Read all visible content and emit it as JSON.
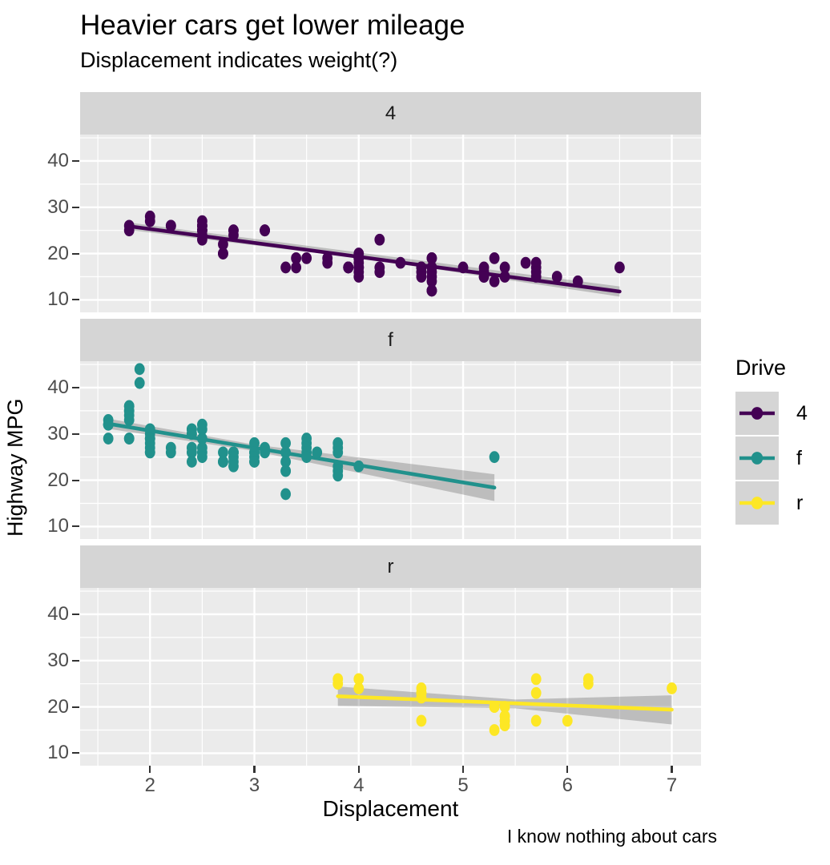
{
  "chart_data": {
    "type": "scatter",
    "title": "Heavier cars get lower mileage",
    "subtitle": "Displacement indicates weight(?)",
    "caption": "I know nothing about cars",
    "xlabel": "Displacement",
    "ylabel": "Highway MPG",
    "legend_title": "Drive",
    "legend_position": "right",
    "grid": true,
    "x_range": [
      1.33,
      7.28
    ],
    "y_range": [
      7.3,
      45.7
    ],
    "x_ticks": [
      2,
      3,
      4,
      5,
      6,
      7
    ],
    "y_ticks": [
      10,
      20,
      30,
      40
    ],
    "x_minor": [
      1.5,
      2.5,
      3.5,
      4.5,
      5.5,
      6.5
    ],
    "y_minor": [
      15,
      25,
      35,
      45
    ],
    "panel_bg": "#ebebeb",
    "strip_bg": "#d5d5d5",
    "grid_color": "#ffffff",
    "ci_color": "rgba(96,96,96,0.33)",
    "facets": [
      {
        "label": "4",
        "color": "#440154",
        "trend": [
          [
            1.8,
            25.9
          ],
          [
            6.5,
            11.8
          ]
        ],
        "ci": [
          [
            1.8,
            26.7,
            25.1
          ],
          [
            4.15,
            19.8,
            18.6
          ],
          [
            6.5,
            12.9,
            10.7
          ]
        ],
        "points": [
          [
            1.8,
            26
          ],
          [
            1.8,
            25
          ],
          [
            2.0,
            28
          ],
          [
            2.0,
            27
          ],
          [
            2.2,
            26
          ],
          [
            2.2,
            26
          ],
          [
            2.5,
            25
          ],
          [
            2.5,
            25
          ],
          [
            2.5,
            26
          ],
          [
            2.5,
            26
          ],
          [
            2.5,
            27
          ],
          [
            2.5,
            25
          ],
          [
            2.5,
            26
          ],
          [
            2.5,
            24
          ],
          [
            2.5,
            23
          ],
          [
            2.7,
            20
          ],
          [
            2.7,
            20
          ],
          [
            2.7,
            22
          ],
          [
            2.8,
            25
          ],
          [
            2.8,
            25
          ],
          [
            2.8,
            24
          ],
          [
            3.1,
            25
          ],
          [
            3.1,
            25
          ],
          [
            3.1,
            25
          ],
          [
            3.3,
            17
          ],
          [
            3.4,
            19
          ],
          [
            3.4,
            17
          ],
          [
            3.5,
            19
          ],
          [
            3.7,
            19
          ],
          [
            3.7,
            18
          ],
          [
            3.9,
            17
          ],
          [
            3.9,
            17
          ],
          [
            3.9,
            17
          ],
          [
            4.0,
            20
          ],
          [
            4.0,
            19
          ],
          [
            4.0,
            19
          ],
          [
            4.0,
            18
          ],
          [
            4.0,
            17
          ],
          [
            4.0,
            17
          ],
          [
            4.0,
            17
          ],
          [
            4.0,
            16
          ],
          [
            4.0,
            15
          ],
          [
            4.2,
            23
          ],
          [
            4.2,
            17
          ],
          [
            4.2,
            16
          ],
          [
            4.4,
            18
          ],
          [
            4.6,
            17
          ],
          [
            4.6,
            17
          ],
          [
            4.6,
            16
          ],
          [
            4.6,
            15
          ],
          [
            4.7,
            19
          ],
          [
            4.7,
            19
          ],
          [
            4.7,
            17
          ],
          [
            4.7,
            17
          ],
          [
            4.7,
            17
          ],
          [
            4.7,
            17
          ],
          [
            4.7,
            16
          ],
          [
            4.7,
            15
          ],
          [
            4.7,
            14
          ],
          [
            4.7,
            12
          ],
          [
            4.7,
            12
          ],
          [
            4.7,
            12
          ],
          [
            5.0,
            17
          ],
          [
            5.2,
            17
          ],
          [
            5.2,
            16
          ],
          [
            5.2,
            15
          ],
          [
            5.2,
            15
          ],
          [
            5.3,
            19
          ],
          [
            5.3,
            14
          ],
          [
            5.4,
            17
          ],
          [
            5.4,
            15
          ],
          [
            5.6,
            18
          ],
          [
            5.7,
            18
          ],
          [
            5.7,
            17
          ],
          [
            5.7,
            16
          ],
          [
            5.7,
            15
          ],
          [
            5.9,
            15
          ],
          [
            6.1,
            14
          ],
          [
            6.5,
            17
          ]
        ]
      },
      {
        "label": "f",
        "color": "#21918c",
        "trend": [
          [
            1.6,
            32.2
          ],
          [
            5.3,
            18.4
          ]
        ],
        "ci": [
          [
            1.6,
            33.3,
            31.1
          ],
          [
            3.0,
            27.7,
            26.3
          ],
          [
            5.3,
            21.3,
            15.5
          ]
        ],
        "points": [
          [
            1.6,
            33
          ],
          [
            1.6,
            32
          ],
          [
            1.6,
            32
          ],
          [
            1.6,
            32
          ],
          [
            1.6,
            29
          ],
          [
            1.8,
            36
          ],
          [
            1.8,
            36
          ],
          [
            1.8,
            34
          ],
          [
            1.8,
            35
          ],
          [
            1.8,
            35
          ],
          [
            1.8,
            33
          ],
          [
            1.8,
            29
          ],
          [
            1.8,
            29
          ],
          [
            1.9,
            44
          ],
          [
            1.9,
            41
          ],
          [
            2.0,
            31
          ],
          [
            2.0,
            31
          ],
          [
            2.0,
            30
          ],
          [
            2.0,
            29
          ],
          [
            2.0,
            29
          ],
          [
            2.0,
            29
          ],
          [
            2.0,
            28
          ],
          [
            2.0,
            27
          ],
          [
            2.0,
            26
          ],
          [
            2.0,
            26
          ],
          [
            2.2,
            27
          ],
          [
            2.2,
            26
          ],
          [
            2.4,
            31
          ],
          [
            2.4,
            31
          ],
          [
            2.4,
            30
          ],
          [
            2.4,
            30
          ],
          [
            2.4,
            27
          ],
          [
            2.4,
            26
          ],
          [
            2.4,
            24
          ],
          [
            2.5,
            32
          ],
          [
            2.5,
            31
          ],
          [
            2.5,
            29
          ],
          [
            2.5,
            27
          ],
          [
            2.5,
            26
          ],
          [
            2.5,
            25
          ],
          [
            2.7,
            26
          ],
          [
            2.7,
            24
          ],
          [
            2.7,
            24
          ],
          [
            2.8,
            26
          ],
          [
            2.8,
            26
          ],
          [
            2.8,
            26
          ],
          [
            2.8,
            25
          ],
          [
            2.8,
            24
          ],
          [
            2.8,
            23
          ],
          [
            3.0,
            28
          ],
          [
            3.0,
            26
          ],
          [
            3.0,
            26
          ],
          [
            3.0,
            25
          ],
          [
            3.0,
            24
          ],
          [
            3.0,
            24
          ],
          [
            3.1,
            27
          ],
          [
            3.1,
            26
          ],
          [
            3.3,
            28
          ],
          [
            3.3,
            26
          ],
          [
            3.3,
            24
          ],
          [
            3.3,
            22
          ],
          [
            3.3,
            22
          ],
          [
            3.3,
            17
          ],
          [
            3.5,
            29
          ],
          [
            3.5,
            28
          ],
          [
            3.5,
            27
          ],
          [
            3.5,
            26
          ],
          [
            3.5,
            25
          ],
          [
            3.6,
            26
          ],
          [
            3.8,
            28
          ],
          [
            3.8,
            27
          ],
          [
            3.8,
            26
          ],
          [
            3.8,
            23
          ],
          [
            3.8,
            22
          ],
          [
            3.8,
            21
          ],
          [
            4.0,
            23
          ],
          [
            5.3,
            25
          ]
        ]
      },
      {
        "label": "r",
        "color": "#fde725",
        "trend": [
          [
            3.8,
            22.3
          ],
          [
            7.0,
            19.4
          ]
        ],
        "ci": [
          [
            3.8,
            24.4,
            20.2
          ],
          [
            5.5,
            21.6,
            19.7
          ],
          [
            7.0,
            22.5,
            16.2
          ]
        ],
        "points": [
          [
            3.8,
            26
          ],
          [
            3.8,
            25
          ],
          [
            4.0,
            26
          ],
          [
            4.0,
            24
          ],
          [
            4.6,
            24
          ],
          [
            4.6,
            23
          ],
          [
            4.6,
            23
          ],
          [
            4.6,
            22
          ],
          [
            4.6,
            17
          ],
          [
            5.3,
            20
          ],
          [
            5.3,
            20
          ],
          [
            5.3,
            15
          ],
          [
            5.4,
            20
          ],
          [
            5.4,
            18
          ],
          [
            5.4,
            18
          ],
          [
            5.4,
            17
          ],
          [
            5.4,
            17
          ],
          [
            5.4,
            16
          ],
          [
            5.7,
            26
          ],
          [
            5.7,
            23
          ],
          [
            5.7,
            17
          ],
          [
            6.0,
            17
          ],
          [
            6.2,
            26
          ],
          [
            6.2,
            25
          ],
          [
            7.0,
            24
          ]
        ]
      }
    ]
  }
}
